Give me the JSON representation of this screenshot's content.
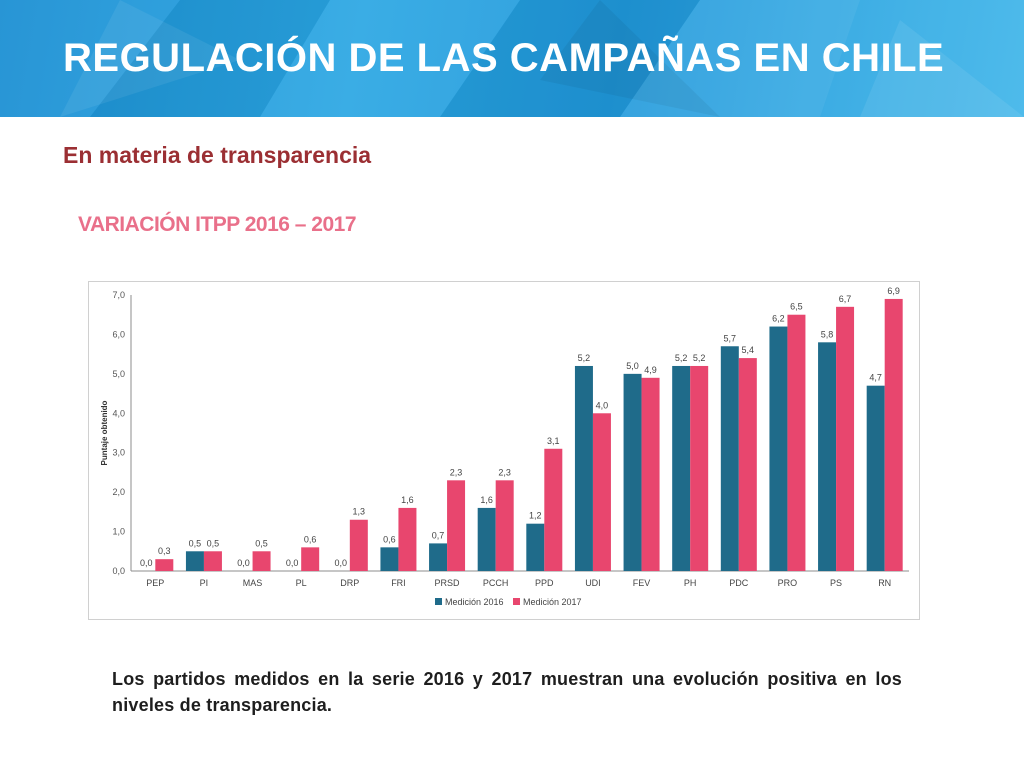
{
  "header": {
    "title": "REGULACIÓN DE LAS CAMPAÑAS EN CHILE"
  },
  "subtitle": "En materia de transparencia",
  "caption": "Los partidos medidos en la serie 2016 y 2017 muestran una evolución positiva en los niveles de transparencia.",
  "colors": {
    "accent": "#9b2f33",
    "series_2016": "#1f6b8a",
    "series_2017": "#e8466e",
    "banner": "#2aa6e3"
  },
  "chart_data": {
    "type": "bar",
    "title": "VARIACIÓN ITPP 2016 – 2017",
    "ylabel": "Puntaje obtenido",
    "xlabel": "",
    "ylim": [
      0,
      7
    ],
    "yticks": [
      "0,0",
      "1,0",
      "2,0",
      "3,0",
      "4,0",
      "5,0",
      "6,0",
      "7,0"
    ],
    "grid": false,
    "legend": "bottom-center",
    "categories": [
      "PEP",
      "PI",
      "MAS",
      "PL",
      "DRP",
      "FRI",
      "PRSD",
      "PCCH",
      "PPD",
      "UDI",
      "FEV",
      "PH",
      "PDC",
      "PRO",
      "PS",
      "RN"
    ],
    "series": [
      {
        "name": "Medición 2016",
        "values": [
          0.0,
          0.5,
          0.0,
          0.0,
          0.0,
          0.6,
          0.7,
          1.6,
          1.2,
          5.2,
          5.0,
          5.2,
          5.7,
          6.2,
          5.8,
          4.7
        ],
        "labels": [
          "0,0",
          "0,5",
          "0,0",
          "0,0",
          "0,0",
          "0,6",
          "0,7",
          "1,6",
          "1,2",
          "5,2",
          "5,0",
          "5,2",
          "5,7",
          "6,2",
          "5,8",
          "4,7"
        ]
      },
      {
        "name": "Medición 2017",
        "values": [
          0.3,
          0.5,
          0.5,
          0.6,
          1.3,
          1.6,
          2.3,
          2.3,
          3.1,
          4.0,
          4.9,
          5.2,
          5.4,
          6.5,
          6.7,
          6.9
        ],
        "labels": [
          "0,3",
          "0,5",
          "0,5",
          "0,6",
          "1,3",
          "1,6",
          "2,3",
          "2,3",
          "3,1",
          "4,0",
          "4,9",
          "5,2",
          "5,4",
          "6,5",
          "6,7",
          "6,9"
        ]
      }
    ]
  }
}
